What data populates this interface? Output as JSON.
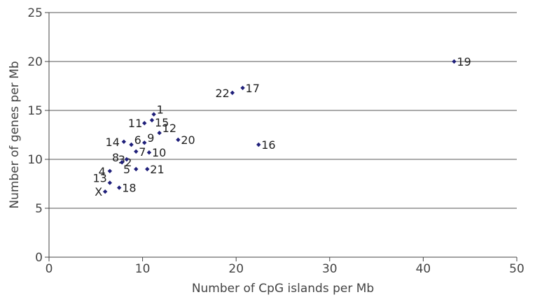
{
  "chart_data": {
    "type": "scatter",
    "title": "",
    "xlabel": "Number of CpG islands per Mb",
    "ylabel": "Number of genes per Mb",
    "xlim": [
      0,
      50
    ],
    "ylim": [
      0,
      25
    ],
    "xticks": [
      "0",
      "10",
      "20",
      "30",
      "40",
      "50"
    ],
    "yticks": [
      "0",
      "5",
      "10",
      "15",
      "20",
      "25"
    ],
    "grid": "horizontal",
    "legend": "none",
    "marker": "diamond",
    "colors": {
      "marker": "#1f1f7a",
      "grid": "#555555",
      "axis": "#444444"
    },
    "points": [
      {
        "label": "1",
        "x": 11.2,
        "y": 14.6
      },
      {
        "label": "2",
        "x": 7.8,
        "y": 9.7
      },
      {
        "label": "3",
        "x": 8.3,
        "y": 10.0
      },
      {
        "label": "4",
        "x": 6.5,
        "y": 8.8
      },
      {
        "label": "5",
        "x": 9.3,
        "y": 9.0
      },
      {
        "label": "6",
        "x": 8.8,
        "y": 11.5
      },
      {
        "label": "7",
        "x": 9.3,
        "y": 10.8
      },
      {
        "label": "8",
        "x": 7.8,
        "y": 9.7
      },
      {
        "label": "9",
        "x": 10.2,
        "y": 11.7
      },
      {
        "label": "10",
        "x": 10.7,
        "y": 10.7
      },
      {
        "label": "11",
        "x": 10.2,
        "y": 13.7
      },
      {
        "label": "12",
        "x": 11.8,
        "y": 12.7
      },
      {
        "label": "13",
        "x": 6.5,
        "y": 7.6
      },
      {
        "label": "14",
        "x": 8.0,
        "y": 11.8
      },
      {
        "label": "15",
        "x": 11.0,
        "y": 14.0
      },
      {
        "label": "16",
        "x": 22.4,
        "y": 11.5
      },
      {
        "label": "17",
        "x": 20.7,
        "y": 17.3
      },
      {
        "label": "18",
        "x": 7.5,
        "y": 7.1
      },
      {
        "label": "19",
        "x": 43.3,
        "y": 20.0
      },
      {
        "label": "20",
        "x": 13.8,
        "y": 12.0
      },
      {
        "label": "21",
        "x": 10.5,
        "y": 9.0
      },
      {
        "label": "22",
        "x": 19.6,
        "y": 16.8
      },
      {
        "label": "X",
        "x": 6.0,
        "y": 6.7
      }
    ]
  }
}
